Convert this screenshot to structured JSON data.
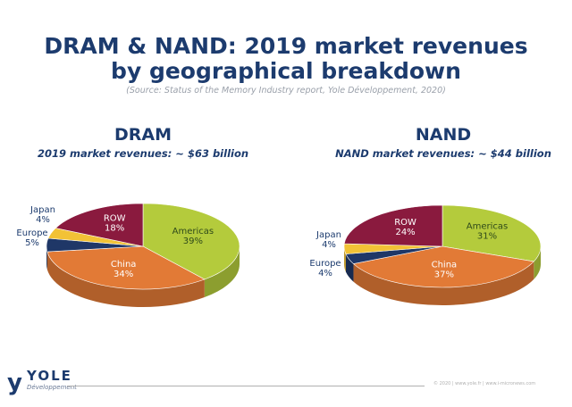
{
  "title_line1": "DRAM & NAND: 2019 market revenues",
  "title_line2": "by geographical breakdown",
  "source": "(Source: Status of the Memory Industry report, Yole Développement, 2020)",
  "logo": {
    "name": "YOLE",
    "sub": "Développement"
  },
  "footer": "© 2020 | www.yole.fr | www.i-micronews.com",
  "colors": {
    "Americas": "#b4cb3c",
    "China": "#e27a36",
    "Europe": "#1f3767",
    "Japan": "#f2c236",
    "ROW": "#8a1a3e",
    "title": "#1c3b6e"
  },
  "chart_data": [
    {
      "type": "pie",
      "title": "DRAM",
      "subtitle": "2019 market revenues: ~ $63 billion",
      "categories": [
        "Americas",
        "China",
        "Europe",
        "Japan",
        "ROW"
      ],
      "values": [
        39,
        34,
        5,
        4,
        18
      ],
      "labels": [
        "39%",
        "34%",
        "5%",
        "4%",
        "18%"
      ]
    },
    {
      "type": "pie",
      "title": "NAND",
      "subtitle": "NAND market revenues: ~ $44 billion",
      "categories": [
        "Americas",
        "China",
        "Europe",
        "Japan",
        "ROW"
      ],
      "values": [
        31,
        37,
        4,
        4,
        24
      ],
      "labels": [
        "31%",
        "37%",
        "4%",
        "4%",
        "24%"
      ]
    }
  ]
}
